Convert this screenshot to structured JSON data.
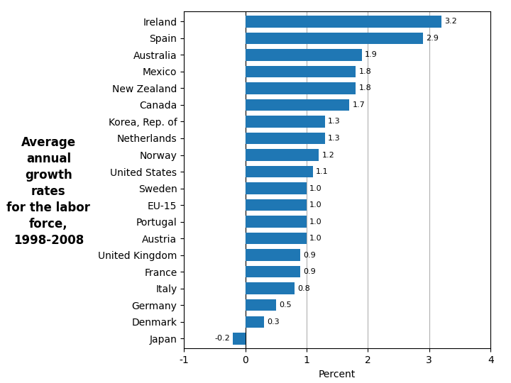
{
  "chart_data": {
    "type": "bar",
    "orientation": "horizontal",
    "title": "Average\nannual\ngrowth\nrates\nfor the labor\nforce,\n1998-2008",
    "xlabel": "Percent",
    "categories": [
      "Ireland",
      "Spain",
      "Australia",
      "Mexico",
      "New Zealand",
      "Canada",
      "Korea, Rep. of",
      "Netherlands",
      "Norway",
      "United States",
      "Sweden",
      "EU-15",
      "Portugal",
      "Austria",
      "United Kingdom",
      "France",
      "Italy",
      "Germany",
      "Denmark",
      "Japan"
    ],
    "values": [
      3.2,
      2.9,
      1.9,
      1.8,
      1.8,
      1.7,
      1.3,
      1.3,
      1.2,
      1.1,
      1.0,
      1.0,
      1.0,
      1.0,
      0.9,
      0.9,
      0.8,
      0.5,
      0.3,
      -0.2
    ],
    "xlim": [
      -1,
      4
    ],
    "xticks": [
      -1,
      0,
      1,
      2,
      3,
      4
    ],
    "grid": true,
    "data_labels": true
  }
}
